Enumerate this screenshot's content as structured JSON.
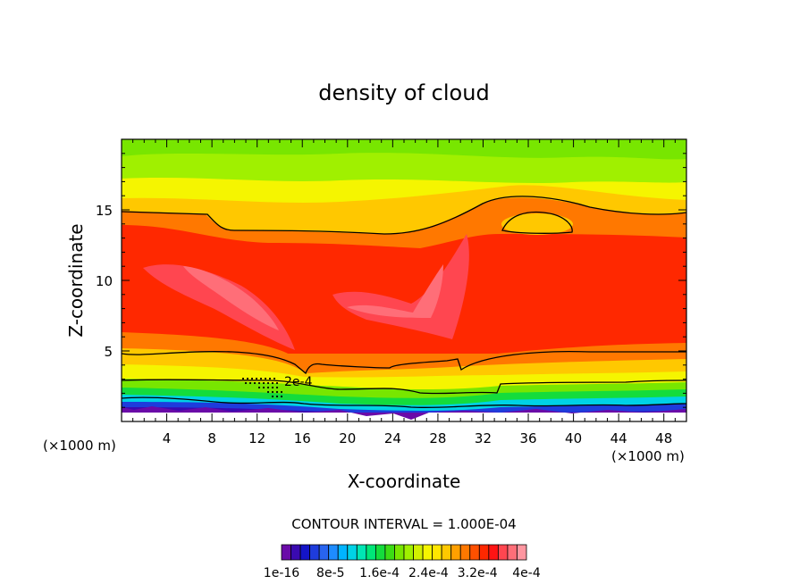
{
  "chart_data": {
    "type": "heatmap",
    "title": "density of cloud",
    "xlabel": "X-coordinate",
    "ylabel": "Z-coordinate",
    "x_unit": "(×1000 m)",
    "xlim": [
      0,
      50
    ],
    "ylim": [
      0,
      20
    ],
    "x_ticks": [
      4,
      8,
      12,
      16,
      20,
      24,
      28,
      32,
      36,
      40,
      44,
      48
    ],
    "y_ticks": [
      5,
      10,
      15
    ],
    "contour_interval_text": "CONTOUR INTERVAL = 1.000E-04",
    "contour_label": "2e-4",
    "colorbar": {
      "min": 1e-16,
      "max": 0.0004,
      "labels": [
        "1e-16",
        "8e-5",
        "1.6e-4",
        "2.4e-4",
        "3.2e-4",
        "4e-4"
      ],
      "colors": [
        "#6a0aa8",
        "#3a0ab0",
        "#1414c8",
        "#1e3cdc",
        "#2864f0",
        "#1e8cff",
        "#00b4ff",
        "#00d2e6",
        "#00e6b4",
        "#00e678",
        "#14dc3c",
        "#3cdc14",
        "#78e600",
        "#a0f000",
        "#d2f000",
        "#f5f500",
        "#ffe600",
        "#ffc800",
        "#ffa000",
        "#ff7800",
        "#ff5000",
        "#ff2800",
        "#ff1414",
        "#ff4650",
        "#ff6e78",
        "#ff96a0"
      ]
    },
    "bands": [
      {
        "z_bottom": 0,
        "z_top": 0.5,
        "value": 5e-05,
        "color": "#ffffff"
      },
      {
        "z_bottom": 0.5,
        "z_top": 1.5,
        "value": 2e-05,
        "color": "#3a0ab0"
      },
      {
        "z_bottom": 1.5,
        "z_top": 2.0,
        "value": 8e-05,
        "color": "#00b4ff"
      },
      {
        "z_bottom": 2.0,
        "z_top": 2.5,
        "value": 0.00012,
        "color": "#14dc3c"
      },
      {
        "z_bottom": 2.5,
        "z_top": 3.0,
        "value": 0.00015,
        "color": "#78e600"
      },
      {
        "z_bottom": 3.0,
        "z_top": 4.0,
        "value": 0.0002,
        "color": "#f5f500"
      },
      {
        "z_bottom": 4.0,
        "z_top": 4.7,
        "value": 0.00023,
        "color": "#ffc800"
      },
      {
        "z_bottom": 4.7,
        "z_top": 5.5,
        "value": 0.00026,
        "color": "#ff7800"
      },
      {
        "z_bottom": 5.5,
        "z_top": 13.5,
        "value": 0.00031,
        "color": "#ff2800"
      },
      {
        "z_bottom": 13.5,
        "z_top": 15.0,
        "value": 0.00028,
        "color": "#ff7800"
      },
      {
        "z_bottom": 15.0,
        "z_top": 16.5,
        "value": 0.00022,
        "color": "#ffc800"
      },
      {
        "z_bottom": 16.5,
        "z_top": 18.0,
        "value": 0.00019,
        "color": "#d2f000"
      },
      {
        "z_bottom": 18.0,
        "z_top": 20.0,
        "value": 0.00016,
        "color": "#78e600"
      }
    ],
    "maxima": [
      {
        "x": 13,
        "z": 8.5,
        "value": 0.00036,
        "color": "#ff6e78"
      },
      {
        "x": 27.5,
        "z": 8.5,
        "value": 0.00036,
        "color": "#ff6e78"
      },
      {
        "x": 36.5,
        "z": 14.0,
        "value": 0.00023,
        "color": "#ffc800"
      }
    ]
  }
}
